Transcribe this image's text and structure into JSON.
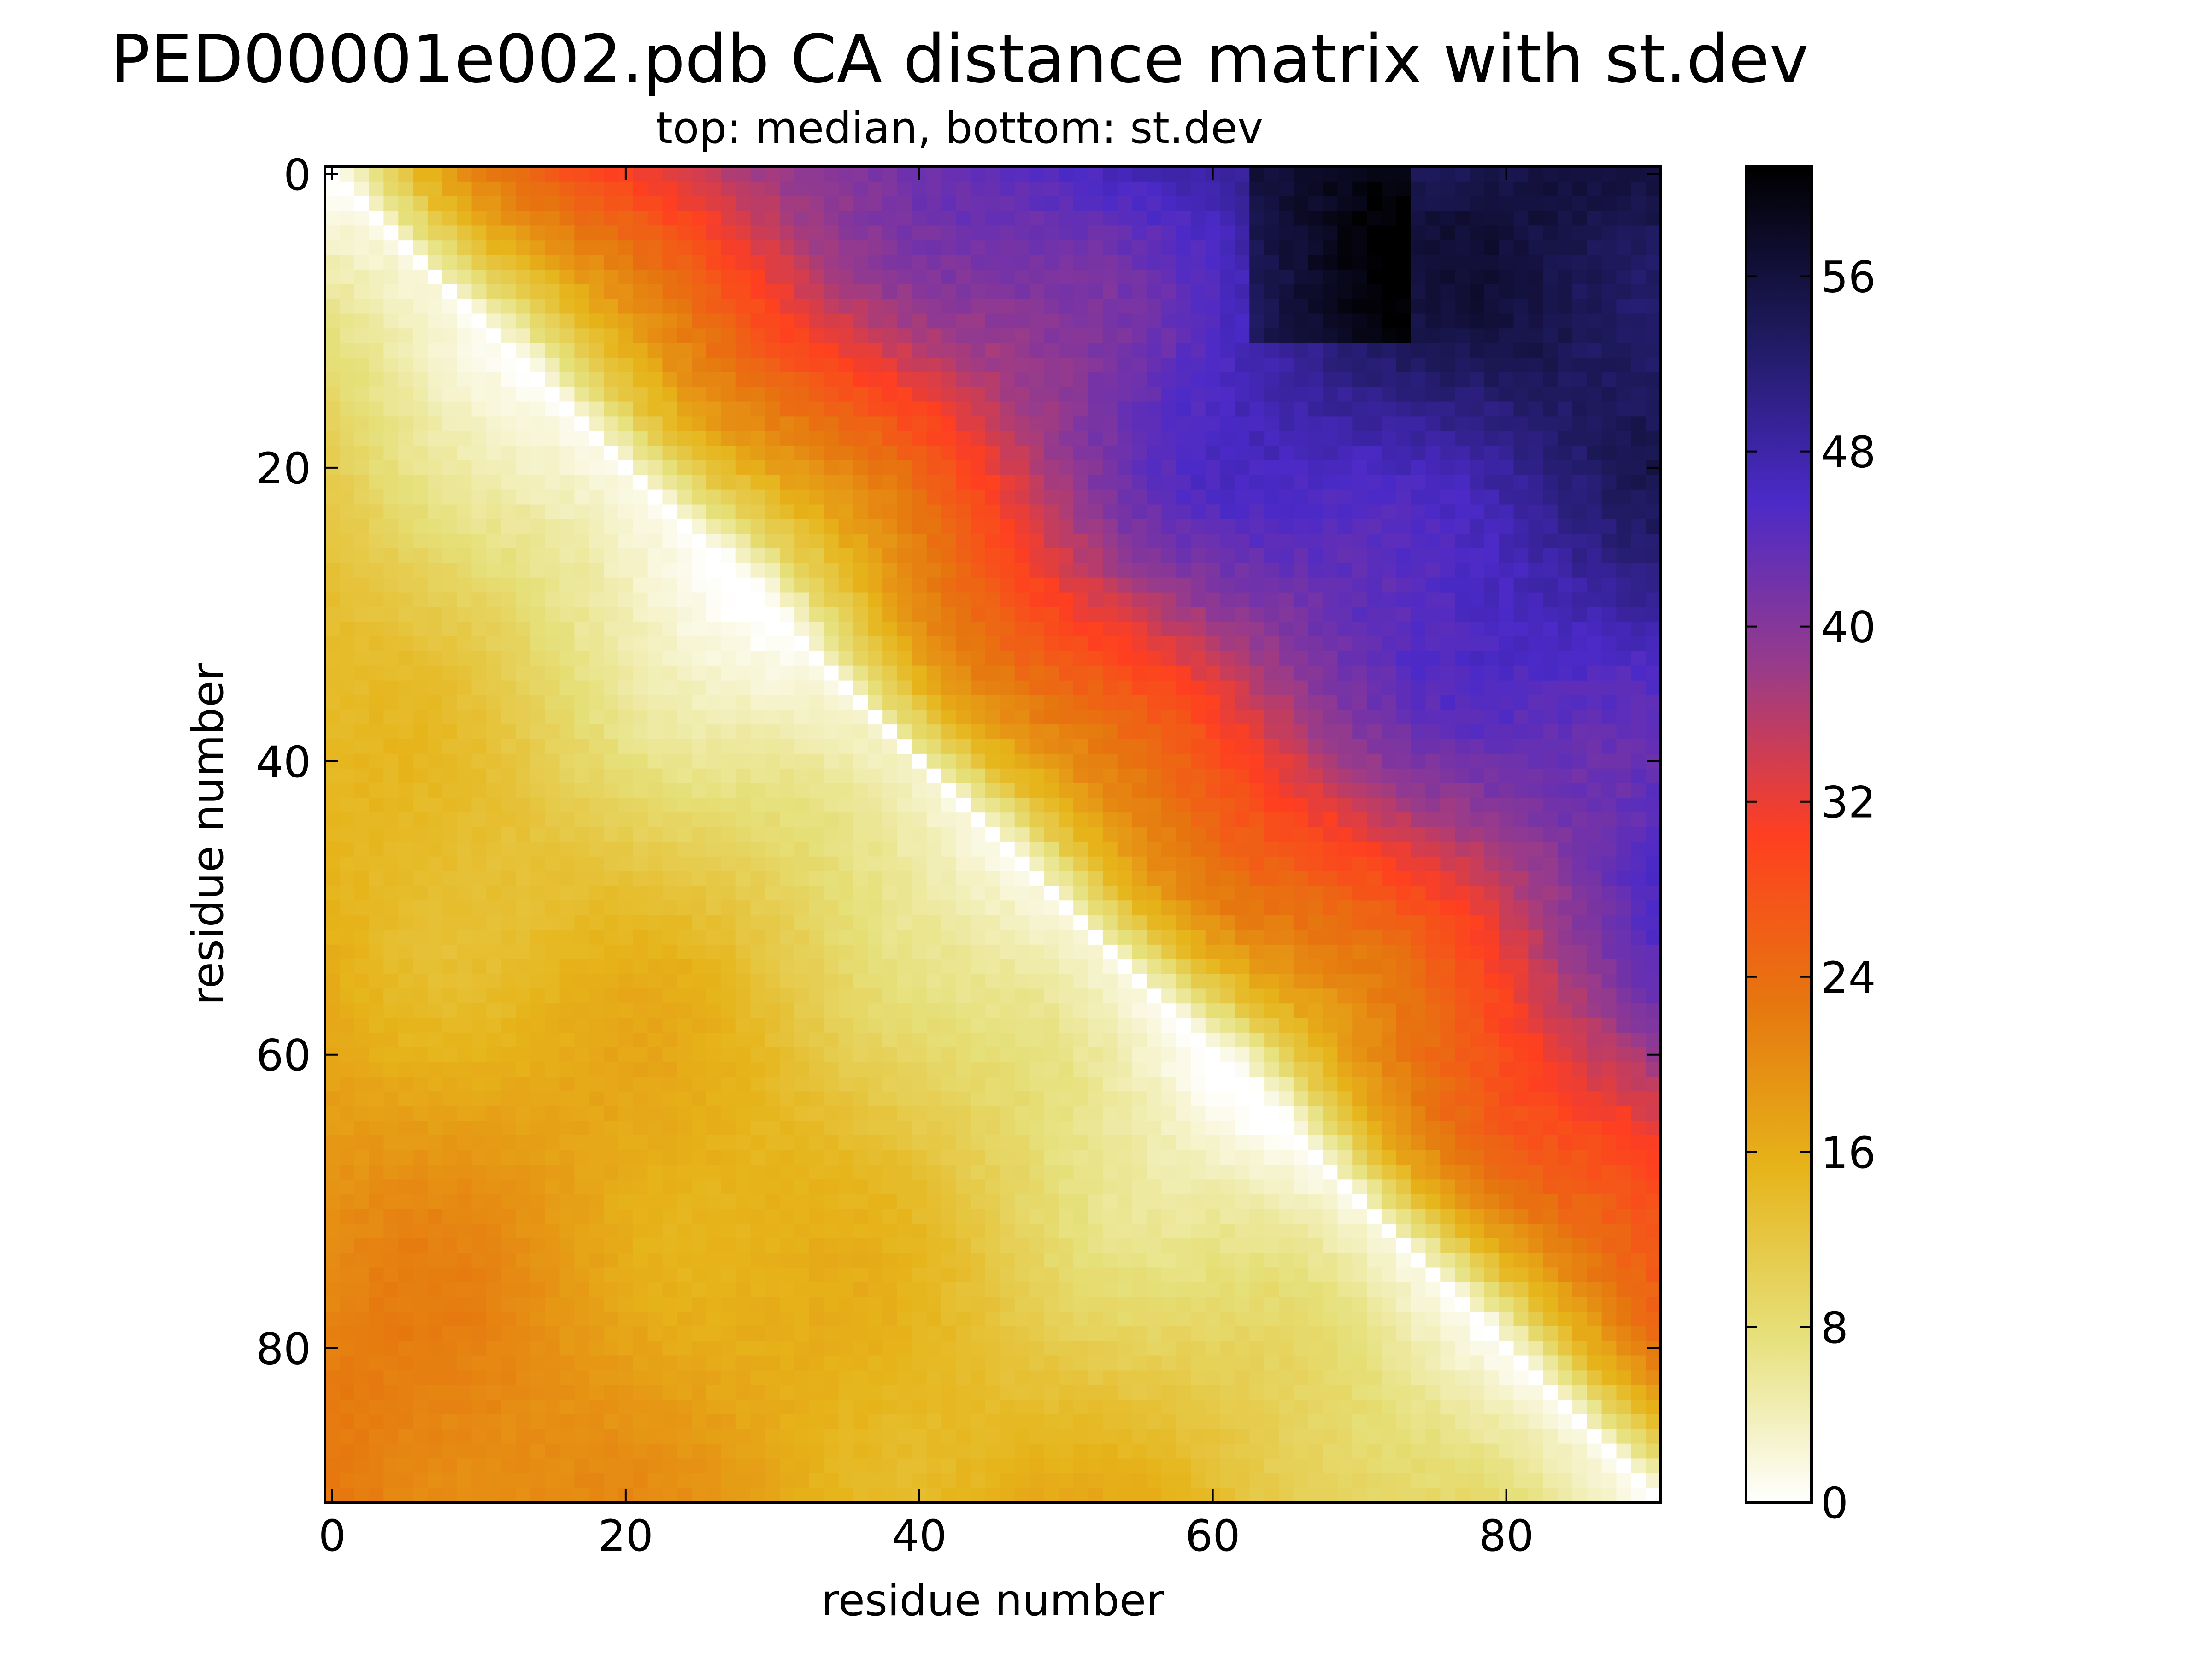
{
  "chart_data": {
    "type": "heatmap",
    "title": "PED00001e002.pdb CA distance matrix with st.dev",
    "subtitle": "top: median,  bottom: st.dev",
    "xlabel": "residue number",
    "ylabel": "residue number",
    "n_residues": 91,
    "xlim": [
      0,
      91
    ],
    "ylim": [
      91,
      0
    ],
    "x_ticks": [
      0,
      20,
      40,
      60,
      80
    ],
    "y_ticks": [
      0,
      20,
      40,
      60,
      80
    ],
    "colorbar": {
      "min": 0,
      "max": 61,
      "ticks": [
        0,
        8,
        16,
        24,
        32,
        40,
        48,
        56
      ],
      "colormap": "CMRmap_r",
      "colors": [
        "#ffffff",
        "#e6e07a",
        "#e6b41a",
        "#e6760f",
        "#ff3f20",
        "#993b8a",
        "#4b2ac8",
        "#1e1a5e",
        "#000000"
      ]
    },
    "upper_triangle": {
      "metric": "median CA distance",
      "summary": "increases with sequence separation, from ~4 near the diagonal to ~45-58 at large separation; darkest region near residues 0-10 vs 64-72",
      "profile_by_separation": [
        [
          0,
          0
        ],
        [
          5,
          12
        ],
        [
          10,
          20
        ],
        [
          15,
          25
        ],
        [
          20,
          29
        ],
        [
          25,
          33
        ],
        [
          30,
          37
        ],
        [
          40,
          43
        ],
        [
          50,
          47
        ],
        [
          60,
          50
        ],
        [
          70,
          53
        ],
        [
          90,
          55
        ]
      ]
    },
    "lower_triangle": {
      "metric": "st.dev of CA distance",
      "summary": "increases with sequence separation from 0 to ~20-24 at large separation",
      "profile_by_separation": [
        [
          0,
          0
        ],
        [
          10,
          6
        ],
        [
          20,
          10
        ],
        [
          30,
          13
        ],
        [
          40,
          15
        ],
        [
          60,
          18
        ],
        [
          80,
          21
        ],
        [
          90,
          22
        ]
      ]
    },
    "grid": false,
    "legend": "colorbar-right"
  }
}
